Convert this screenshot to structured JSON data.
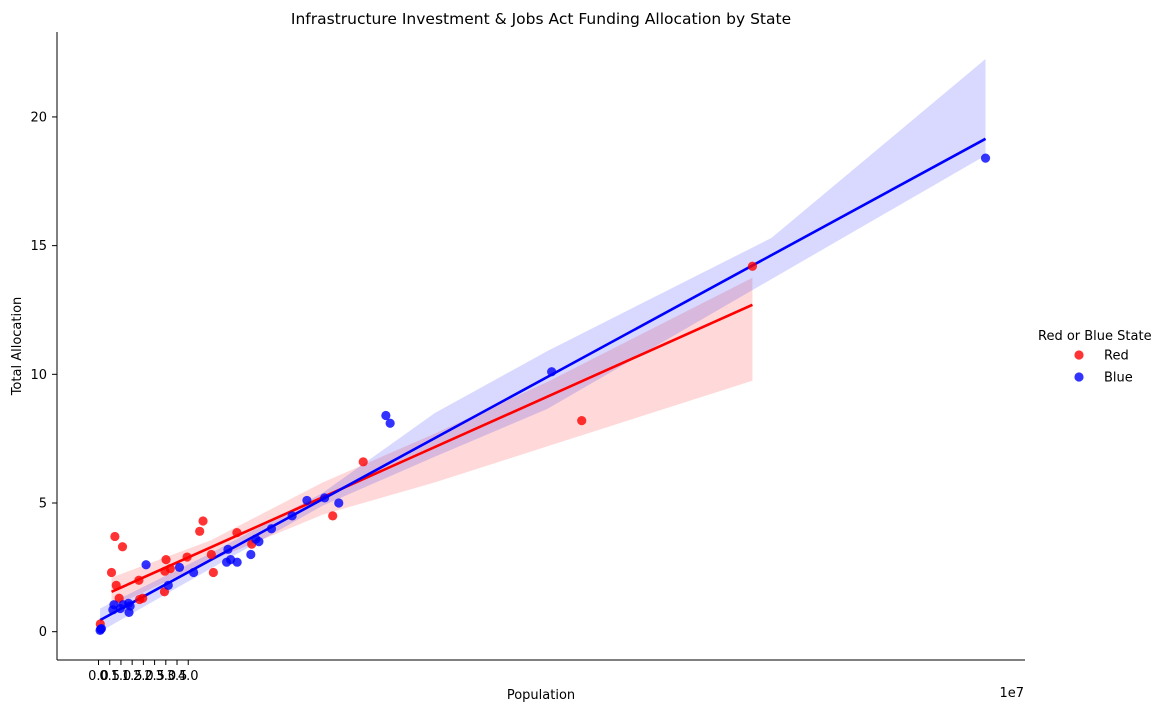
{
  "chart_data": {
    "type": "scatter",
    "title": "Infrastructure Investment & Jobs Act Funding Allocation by State",
    "xlabel": "Population",
    "ylabel": "Total Allocation",
    "x_offset_label": "1e7",
    "xlim": [
      -1.85,
      41.3
    ],
    "ylim": [
      -1.1,
      23.3
    ],
    "x_ticks": [
      0,
      0.5,
      1.0,
      1.5,
      2.0,
      2.5,
      3.0,
      3.5,
      4.0
    ],
    "x_tick_labels": [
      "0.0",
      "0.5",
      "1.0",
      "1.5",
      "2.0",
      "2.5",
      "3.0",
      "3.5",
      "4.0"
    ],
    "y_ticks": [
      0,
      5,
      10,
      15,
      20
    ],
    "y_tick_labels": [
      "0",
      "5",
      "10",
      "15",
      "20"
    ],
    "grid": false,
    "legend": {
      "title": "Red or Blue State",
      "placement": "right",
      "entries": [
        "Red",
        "Blue"
      ]
    },
    "series": [
      {
        "name": "Red",
        "color": "#ff0000",
        "points": [
          [
            0.08,
            0.3
          ],
          [
            0.58,
            2.3
          ],
          [
            0.73,
            3.7
          ],
          [
            0.79,
            1.8
          ],
          [
            0.92,
            1.3
          ],
          [
            1.07,
            3.3
          ],
          [
            1.8,
            2.0
          ],
          [
            1.83,
            1.25
          ],
          [
            1.97,
            1.3
          ],
          [
            2.94,
            1.55
          ],
          [
            2.96,
            2.35
          ],
          [
            3.01,
            2.8
          ],
          [
            3.2,
            2.45
          ],
          [
            3.95,
            2.9
          ],
          [
            4.51,
            3.9
          ],
          [
            4.66,
            4.3
          ],
          [
            5.03,
            3.0
          ],
          [
            5.12,
            2.3
          ],
          [
            6.17,
            3.85
          ],
          [
            6.83,
            3.4
          ],
          [
            10.44,
            4.5
          ],
          [
            11.8,
            6.6
          ],
          [
            21.54,
            8.2
          ],
          [
            29.15,
            14.2
          ]
        ],
        "fit_line": [
          [
            0.58,
            1.55
          ],
          [
            29.15,
            12.7
          ]
        ],
        "ci_band": {
          "upper": [
            [
              0.58,
              2.1
            ],
            [
              5.0,
              3.55
            ],
            [
              10.0,
              5.8
            ],
            [
              15.0,
              7.7
            ],
            [
              20.0,
              9.7
            ],
            [
              29.15,
              13.75
            ]
          ],
          "lower": [
            [
              0.58,
              0.95
            ],
            [
              5.0,
              2.75
            ],
            [
              10.0,
              4.55
            ],
            [
              15.0,
              5.8
            ],
            [
              20.0,
              7.2
            ],
            [
              29.15,
              9.75
            ]
          ]
        }
      },
      {
        "name": "Blue",
        "color": "#0000ff",
        "points": [
          [
            0.07,
            0.05
          ],
          [
            0.1,
            0.1
          ],
          [
            0.13,
            0.12
          ],
          [
            0.64,
            0.85
          ],
          [
            0.69,
            1.05
          ],
          [
            0.97,
            0.9
          ],
          [
            1.1,
            1.05
          ],
          [
            1.34,
            1.1
          ],
          [
            1.36,
            0.75
          ],
          [
            1.41,
            1.0
          ],
          [
            2.12,
            2.6
          ],
          [
            3.11,
            1.8
          ],
          [
            3.61,
            2.5
          ],
          [
            4.24,
            2.3
          ],
          [
            5.71,
            2.7
          ],
          [
            5.77,
            3.2
          ],
          [
            5.89,
            2.8
          ],
          [
            6.18,
            2.7
          ],
          [
            6.79,
            3.0
          ],
          [
            7.01,
            3.6
          ],
          [
            7.15,
            3.5
          ],
          [
            7.71,
            4.0
          ],
          [
            8.63,
            4.5
          ],
          [
            9.29,
            5.1
          ],
          [
            10.08,
            5.2
          ],
          [
            10.71,
            5.0
          ],
          [
            12.81,
            8.4
          ],
          [
            13.0,
            8.1
          ],
          [
            20.2,
            10.1
          ],
          [
            39.54,
            18.4
          ]
        ],
        "fit_line": [
          [
            0.07,
            0.45
          ],
          [
            39.54,
            19.15
          ]
        ],
        "ci_band": {
          "upper": [
            [
              0.07,
              0.9
            ],
            [
              5.0,
              3.05
            ],
            [
              10.0,
              5.4
            ],
            [
              15.0,
              8.5
            ],
            [
              20.0,
              10.9
            ],
            [
              30.0,
              15.3
            ],
            [
              39.54,
              22.25
            ]
          ],
          "lower": [
            [
              0.07,
              0.0
            ],
            [
              5.0,
              2.45
            ],
            [
              10.0,
              4.9
            ],
            [
              15.0,
              6.8
            ],
            [
              20.0,
              8.65
            ],
            [
              30.0,
              13.7
            ],
            [
              39.54,
              18.5
            ]
          ]
        }
      }
    ]
  }
}
